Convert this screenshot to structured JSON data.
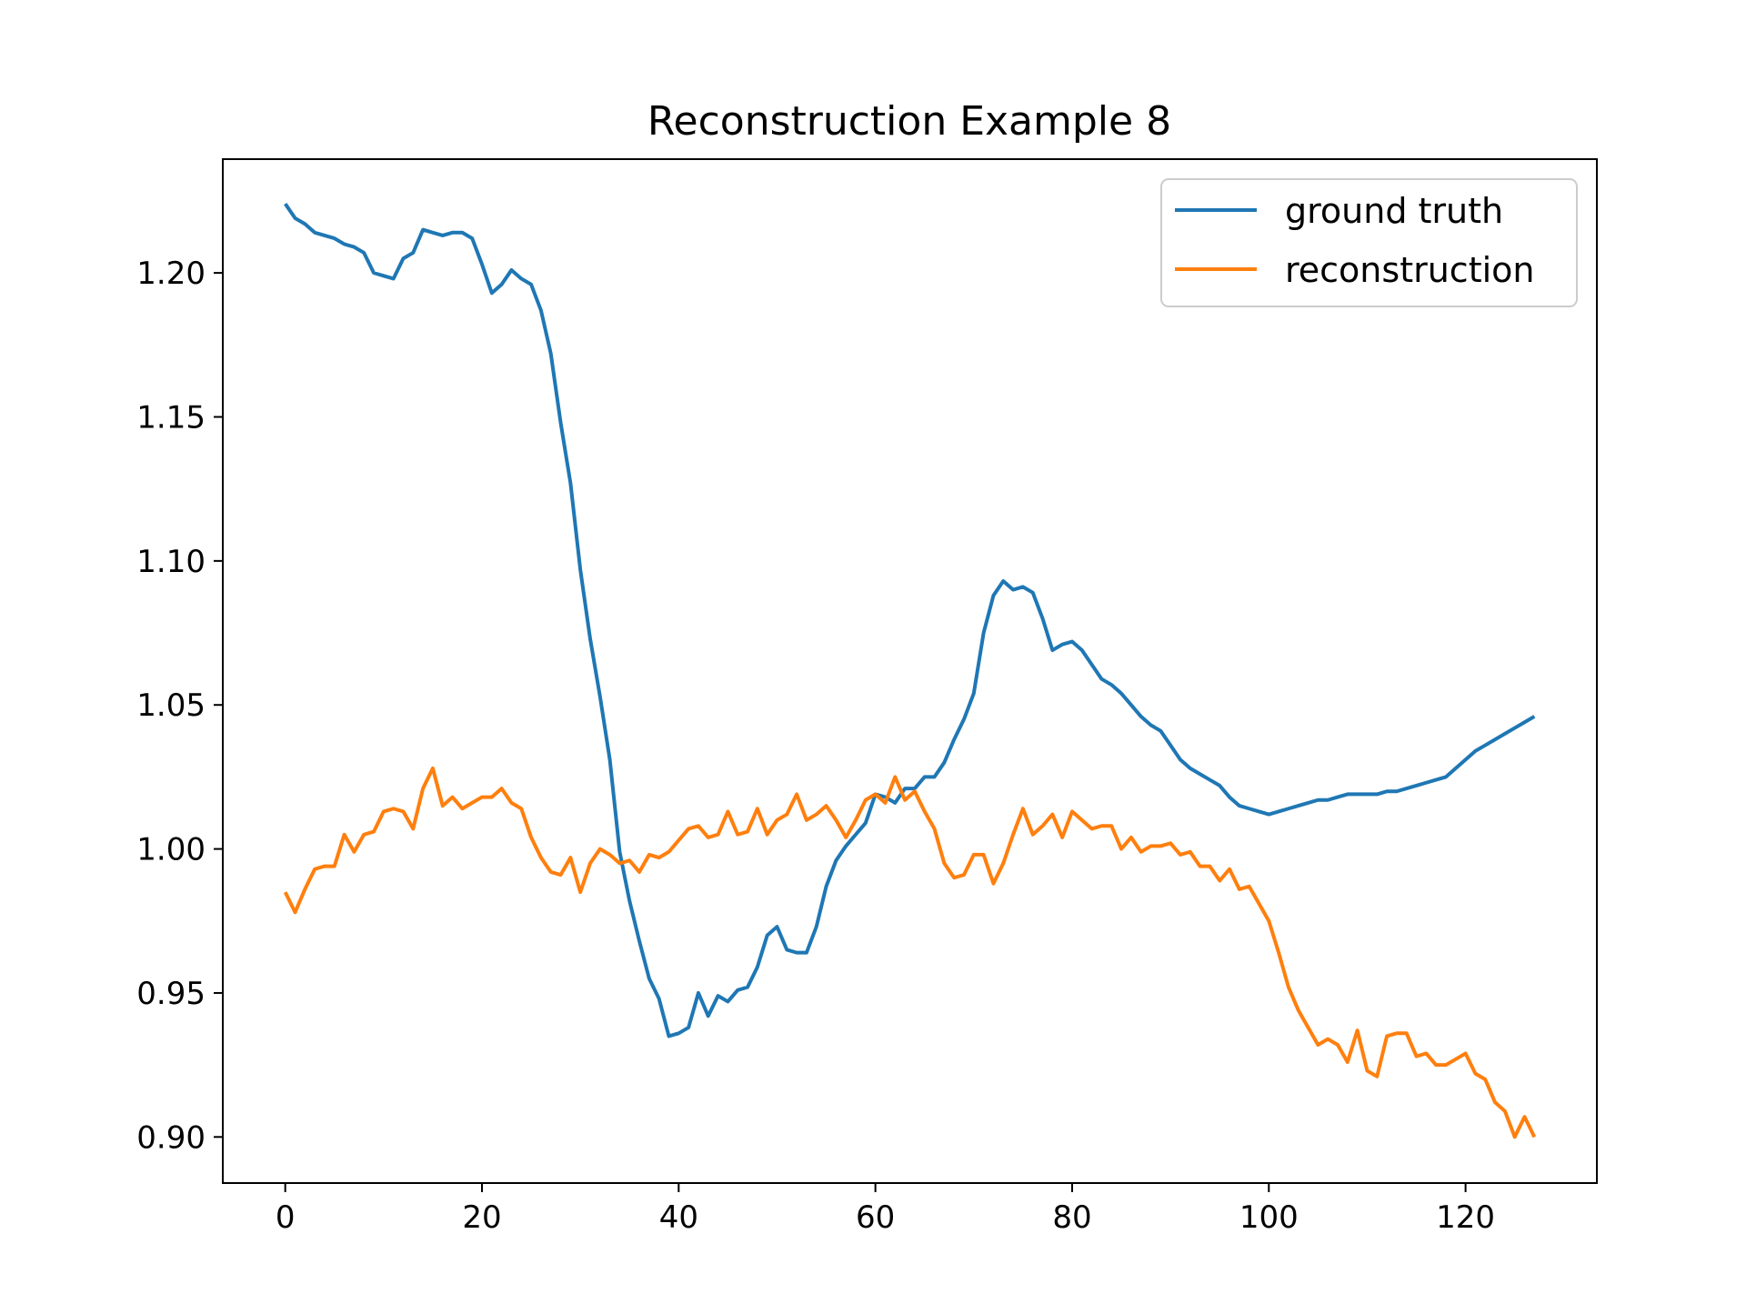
{
  "chart_data": {
    "type": "line",
    "title": "Reconstruction Example 8",
    "xlabel": "",
    "ylabel": "",
    "xlim": [
      -6.35,
      133.35
    ],
    "ylim": [
      0.884,
      1.2395
    ],
    "x_ticks": [
      0,
      20,
      40,
      60,
      80,
      100,
      120
    ],
    "y_ticks": [
      0.9,
      0.95,
      1.0,
      1.05,
      1.1,
      1.15,
      1.2
    ],
    "x_tick_labels": [
      "0",
      "20",
      "40",
      "60",
      "80",
      "100",
      "120"
    ],
    "y_tick_labels": [
      "0.90",
      "0.95",
      "1.00",
      "1.05",
      "1.10",
      "1.15",
      "1.20"
    ],
    "grid": false,
    "legend_position": "upper right",
    "series": [
      {
        "name": "ground truth",
        "color": "#1f77b4",
        "x_start": 0,
        "x_step": 1,
        "values": [
          1.224,
          1.219,
          1.217,
          1.214,
          1.213,
          1.212,
          1.21,
          1.209,
          1.207,
          1.2,
          1.199,
          1.198,
          1.205,
          1.207,
          1.215,
          1.214,
          1.213,
          1.214,
          1.214,
          1.212,
          1.203,
          1.193,
          1.196,
          1.201,
          1.198,
          1.196,
          1.187,
          1.172,
          1.148,
          1.127,
          1.097,
          1.073,
          1.053,
          1.031,
          0.999,
          0.982,
          0.968,
          0.955,
          0.948,
          0.935,
          0.936,
          0.938,
          0.95,
          0.942,
          0.949,
          0.947,
          0.951,
          0.952,
          0.959,
          0.97,
          0.973,
          0.965,
          0.964,
          0.964,
          0.973,
          0.987,
          0.996,
          1.001,
          1.005,
          1.009,
          1.019,
          1.018,
          1.016,
          1.021,
          1.021,
          1.025,
          1.025,
          1.03,
          1.038,
          1.045,
          1.054,
          1.075,
          1.088,
          1.093,
          1.09,
          1.091,
          1.089,
          1.08,
          1.069,
          1.071,
          1.072,
          1.069,
          1.064,
          1.059,
          1.057,
          1.054,
          1.05,
          1.046,
          1.043,
          1.041,
          1.036,
          1.031,
          1.028,
          1.026,
          1.024,
          1.022,
          1.018,
          1.015,
          1.014,
          1.013,
          1.012,
          1.013,
          1.014,
          1.015,
          1.016,
          1.017,
          1.017,
          1.018,
          1.019,
          1.019,
          1.019,
          1.019,
          1.02,
          1.02,
          1.021,
          1.022,
          1.023,
          1.024,
          1.025,
          1.028,
          1.031,
          1.034,
          1.036,
          1.038,
          1.04,
          1.042,
          1.044,
          1.046
        ]
      },
      {
        "name": "reconstruction",
        "color": "#ff7f0e",
        "x_start": 0,
        "x_step": 1,
        "values": [
          0.985,
          0.978,
          0.986,
          0.993,
          0.994,
          0.994,
          1.005,
          0.999,
          1.005,
          1.006,
          1.013,
          1.014,
          1.013,
          1.007,
          1.021,
          1.028,
          1.015,
          1.018,
          1.014,
          1.016,
          1.018,
          1.018,
          1.021,
          1.016,
          1.014,
          1.004,
          0.997,
          0.992,
          0.991,
          0.997,
          0.985,
          0.995,
          1.0,
          0.998,
          0.995,
          0.996,
          0.992,
          0.998,
          0.997,
          0.999,
          1.003,
          1.007,
          1.008,
          1.004,
          1.005,
          1.013,
          1.005,
          1.006,
          1.014,
          1.005,
          1.01,
          1.012,
          1.019,
          1.01,
          1.012,
          1.015,
          1.01,
          1.004,
          1.01,
          1.017,
          1.019,
          1.016,
          1.025,
          1.017,
          1.02,
          1.013,
          1.007,
          0.995,
          0.99,
          0.991,
          0.998,
          0.998,
          0.988,
          0.995,
          1.005,
          1.014,
          1.005,
          1.008,
          1.012,
          1.004,
          1.013,
          1.01,
          1.007,
          1.008,
          1.008,
          1.0,
          1.004,
          0.999,
          1.001,
          1.001,
          1.002,
          0.998,
          0.999,
          0.994,
          0.994,
          0.989,
          0.993,
          0.986,
          0.987,
          0.981,
          0.975,
          0.964,
          0.952,
          0.944,
          0.938,
          0.932,
          0.934,
          0.932,
          0.926,
          0.937,
          0.923,
          0.921,
          0.935,
          0.936,
          0.936,
          0.928,
          0.929,
          0.925,
          0.925,
          0.927,
          0.929,
          0.922,
          0.92,
          0.912,
          0.909,
          0.9,
          0.907,
          0.9
        ]
      }
    ]
  }
}
